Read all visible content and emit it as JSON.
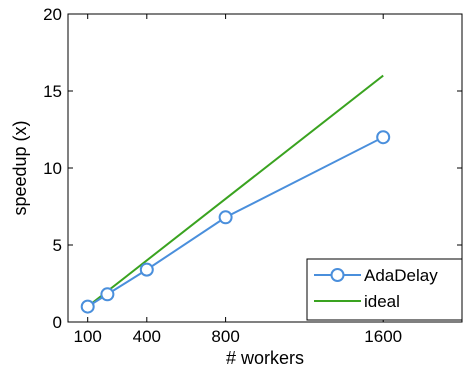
{
  "chart_data": {
    "type": "line",
    "xlabel": "# workers",
    "ylabel": "speedup (x)",
    "x_ticks": [
      100,
      400,
      800,
      1600
    ],
    "y_ticks": [
      0,
      5,
      10,
      15,
      20
    ],
    "xlim": [
      0,
      2000
    ],
    "ylim": [
      0,
      20
    ],
    "grid": false,
    "legend_position": "bottom-right",
    "series": [
      {
        "name": "AdaDelay",
        "color": "#4a8fdc",
        "marker": "circle",
        "x": [
          100,
          200,
          400,
          800,
          1600
        ],
        "y": [
          1.0,
          1.8,
          3.4,
          6.8,
          12.0
        ]
      },
      {
        "name": "ideal",
        "color": "#3aa320",
        "marker": "none",
        "x": [
          100,
          1600
        ],
        "y": [
          1,
          16
        ]
      }
    ]
  }
}
